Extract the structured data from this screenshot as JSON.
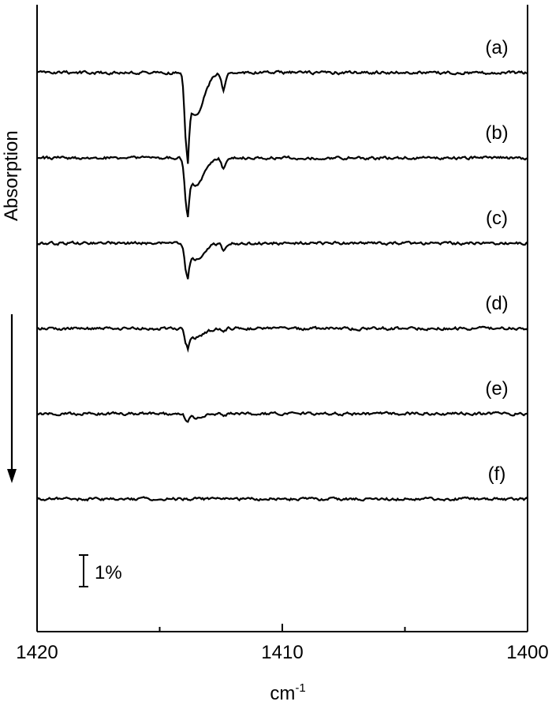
{
  "chart_data": {
    "type": "line",
    "ylabel": "Absorption",
    "xlabel_base": "cm",
    "xlabel_sup": "-1",
    "xlim": [
      1420,
      1400
    ],
    "x_tick_labels": [
      "1420",
      "1410",
      "1400"
    ],
    "x_tick_values": [
      1420,
      1410,
      1400
    ],
    "x_minor_ticks": [
      1415,
      1405
    ],
    "scale_bar_label": "1%",
    "scale_bar_value_percent": 1,
    "arrow_direction": "down",
    "peaks": [
      1413.9,
      1412.4
    ],
    "series": [
      {
        "name": "(a)",
        "offset": 5,
        "peak_depth": 4.1,
        "secondary_depth": 0.8
      },
      {
        "name": "(b)",
        "offset": 4,
        "peak_depth": 2.7,
        "secondary_depth": 0.5
      },
      {
        "name": "(c)",
        "offset": 3,
        "peak_depth": 1.6,
        "secondary_depth": 0.3
      },
      {
        "name": "(d)",
        "offset": 2,
        "peak_depth": 0.9,
        "secondary_depth": 0.2
      },
      {
        "name": "(e)",
        "offset": 1,
        "peak_depth": 0.35,
        "secondary_depth": 0.1
      },
      {
        "name": "(f)",
        "offset": 0,
        "peak_depth": 0.0,
        "secondary_depth": 0.0
      }
    ],
    "grid": false,
    "color": "#000000"
  }
}
